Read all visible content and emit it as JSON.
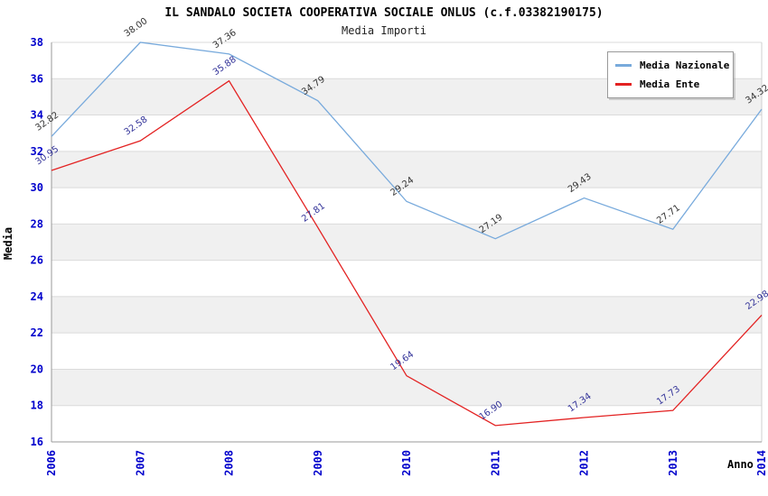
{
  "chart_data": {
    "type": "line",
    "title": "IL SANDALO SOCIETA COOPERATIVA SOCIALE ONLUS (c.f.03382190175)",
    "subtitle": "Media Importi",
    "xlabel": "Anno",
    "ylabel": "Media",
    "categories": [
      "2006",
      "2007",
      "2008",
      "2009",
      "2010",
      "2011",
      "2012",
      "2013",
      "2014"
    ],
    "ylim": [
      16,
      38
    ],
    "ytick_step": 2,
    "yticks": [
      38,
      36,
      34,
      32,
      30,
      28,
      26,
      24,
      22,
      20,
      18,
      16
    ],
    "grid": "horizontal gridlines with alternating shaded bands",
    "legend_position": "top-right",
    "series": [
      {
        "name": "Media Nazionale",
        "color": "#78AADC",
        "label_color": "#333333",
        "values": [
          32.82,
          38.0,
          37.36,
          34.79,
          29.24,
          27.19,
          29.43,
          27.71,
          34.32
        ]
      },
      {
        "name": "Media Ente",
        "color": "#E32222",
        "label_color": "#333399",
        "values": [
          30.95,
          32.58,
          35.88,
          27.81,
          19.64,
          16.9,
          17.34,
          17.73,
          22.98
        ]
      }
    ]
  },
  "colors": {
    "axis_tick": "#0000CC",
    "band": "#F0F0F0",
    "grid": "#DBDBDB",
    "axis_border": "#999999",
    "plot_border_light": "#CFCFCF"
  }
}
